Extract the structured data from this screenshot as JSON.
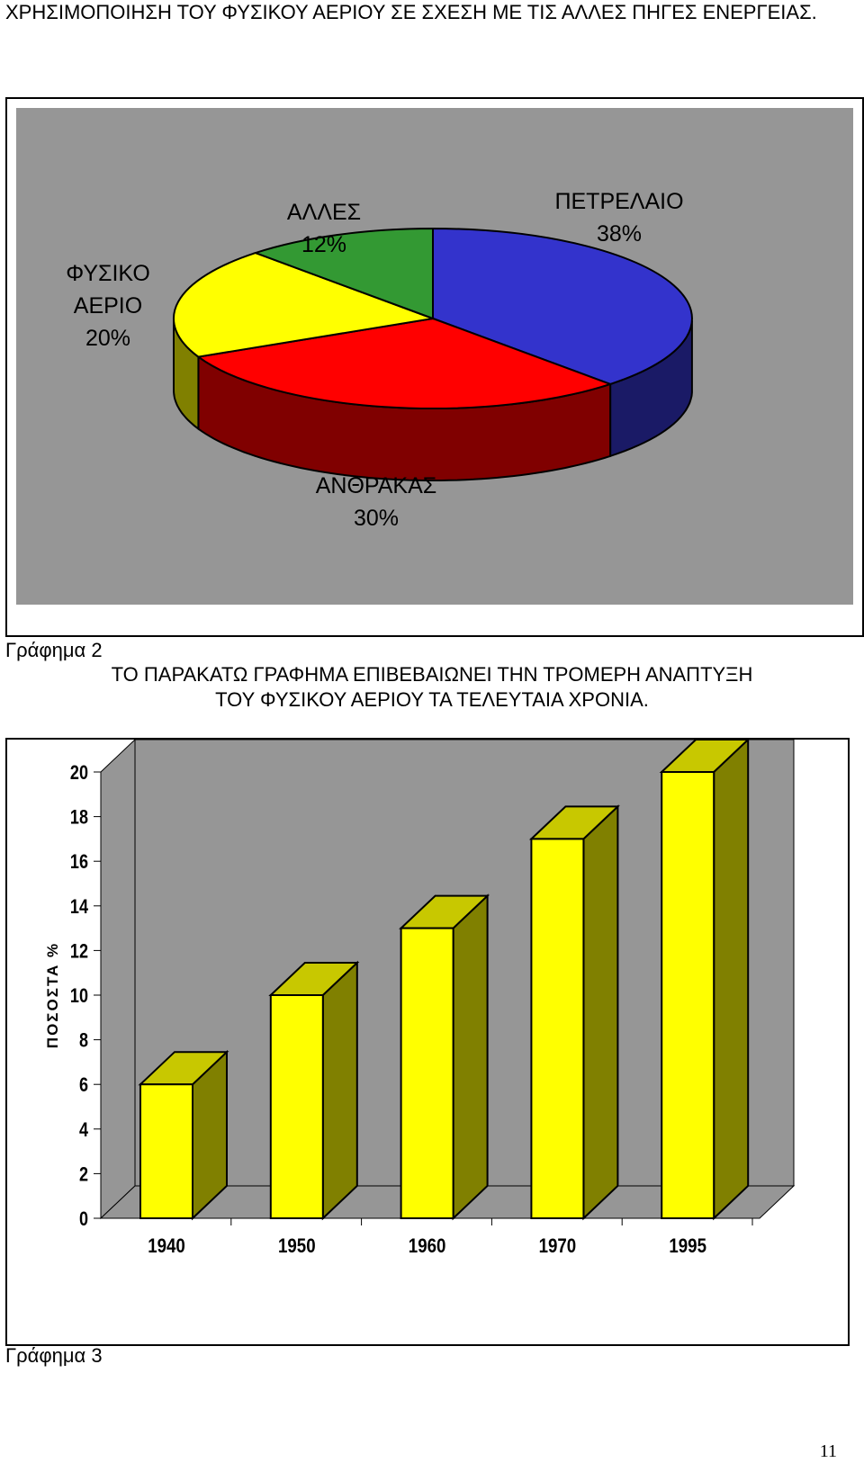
{
  "heading": "ΧΡΗΣΙΜΟΠΟΙΗΣΗ  ΤΟΥ ΦΥΣΙΚΟΥ ΑΕΡΙΟΥ ΣΕ ΣΧΕΣΗ ΜΕ ΤΙΣ ΑΛΛΕΣ ΠΗΓΕΣ ΕΝΕΡΓΕΙΑΣ.",
  "caption_2": "Γράφημα 2",
  "comment_line1": "ΤΟ ΠΑΡΑΚΑΤΩ ΓΡΑΦΗΜΑ ΕΠΙΒΕΒΑΙΩΝΕΙ ΤΗΝ ΤΡΟΜΕΡΗ ΑΝΑΠΤΥΞΗ",
  "comment_line2": "ΤΟΥ ΦΥΣΙΚΟΥ ΑΕΡΙΟΥ ΤΑ ΤΕΛΕΥΤΑΙΑ ΧΡΟΝΙΑ.",
  "caption_3": "Γράφημα 3",
  "page_number": "11",
  "chart_data": [
    {
      "type": "pie",
      "slices": [
        {
          "label": "ΠΕΤΡΕΛΑΙΟ",
          "value": 38,
          "value_label": "38%",
          "color": "#3333cc",
          "side_color": "#1a1a66"
        },
        {
          "label": "ΑΝΘΡΑΚΑΣ",
          "value": 30,
          "value_label": "30%",
          "color": "#ff0000",
          "side_color": "#800000"
        },
        {
          "label_lines": [
            "ΦΥΣΙΚΟ",
            "ΑΕΡΙΟ"
          ],
          "value": 20,
          "value_label": "20%",
          "color": "#ffff00",
          "side_color": "#808000"
        },
        {
          "label": "ΑΛΛΕΣ",
          "value": 12,
          "value_label": "12%",
          "color": "#339933",
          "side_color": "#1a4d1a"
        }
      ],
      "background": "#969696"
    },
    {
      "type": "bar",
      "categories": [
        "1940",
        "1950",
        "1960",
        "1970",
        "1995"
      ],
      "values": [
        6,
        10,
        13,
        17,
        20
      ],
      "ylabel": "ΠΟΣΟΣΤΑ %",
      "ylim": [
        0,
        20
      ],
      "yticks": [
        "0",
        "2",
        "4",
        "6",
        "8",
        "10",
        "12",
        "14",
        "16",
        "18",
        "20"
      ],
      "bar_color": "#ffff00",
      "bar_top_color": "#c8c800",
      "bar_side_color": "#808000",
      "background": "#969696"
    }
  ]
}
